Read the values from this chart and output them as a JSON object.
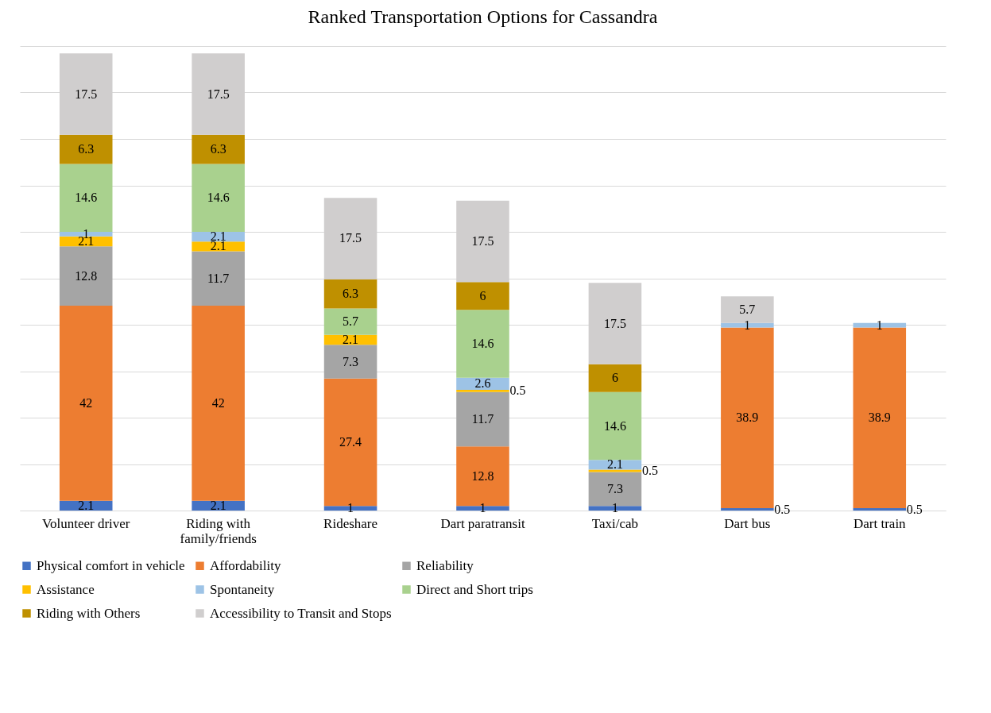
{
  "chart_data": {
    "type": "bar",
    "title": "Ranked Transportation Options for Cassandra",
    "stacked": true,
    "data_labels": true,
    "grid": "y",
    "legend": "bottom",
    "tick_labels": "x",
    "categories": [
      "Volunteer driver",
      "Riding with family/friends",
      "Rideshare",
      "Dart paratransit",
      "Taxi/cab",
      "Dart bus",
      "Dart train"
    ],
    "ylim": [
      0,
      100
    ],
    "yticks": [
      {
        "value": 0,
        "label": null
      },
      {
        "value": 10,
        "label": null
      },
      {
        "value": 20,
        "label": null
      },
      {
        "value": 30,
        "label": null
      },
      {
        "value": 40,
        "label": null
      },
      {
        "value": 50,
        "label": null
      },
      {
        "value": 60,
        "label": null
      },
      {
        "value": 70,
        "label": null
      },
      {
        "value": 80,
        "label": null
      },
      {
        "value": 90,
        "label": null
      },
      {
        "value": 100,
        "label": null
      }
    ],
    "series": [
      {
        "name": "Physical comfort in vehicle",
        "color": "#4472c4",
        "values": [
          2.1,
          2.1,
          1,
          1,
          1,
          0.5,
          0.5
        ]
      },
      {
        "name": "Affordability",
        "color": "#ed7d31",
        "values": [
          42,
          42,
          27.4,
          12.8,
          null,
          38.9,
          38.9
        ]
      },
      {
        "name": "Reliability",
        "color": "#a5a5a5",
        "values": [
          12.8,
          11.7,
          7.3,
          11.7,
          7.3,
          null,
          null
        ]
      },
      {
        "name": "Assistance",
        "color": "#ffc000",
        "values": [
          2.1,
          2.1,
          2.1,
          0.5,
          0.5,
          null,
          null
        ]
      },
      {
        "name": "Spontaneity",
        "color": "#9dc3e6",
        "values": [
          1,
          2.1,
          null,
          2.6,
          2.1,
          1,
          1
        ]
      },
      {
        "name": "Direct and Short trips",
        "color": "#a9d18e",
        "values": [
          14.6,
          14.6,
          5.7,
          14.6,
          14.6,
          null,
          null
        ]
      },
      {
        "name": "Riding with Others",
        "color": "#bf9000",
        "values": [
          6.3,
          6.3,
          6.3,
          6,
          6,
          null,
          null
        ]
      },
      {
        "name": "Accessibility to Transit and Stops",
        "color": "#d0cece",
        "values": [
          17.5,
          17.5,
          17.5,
          17.5,
          17.5,
          5.7,
          null
        ]
      }
    ]
  }
}
